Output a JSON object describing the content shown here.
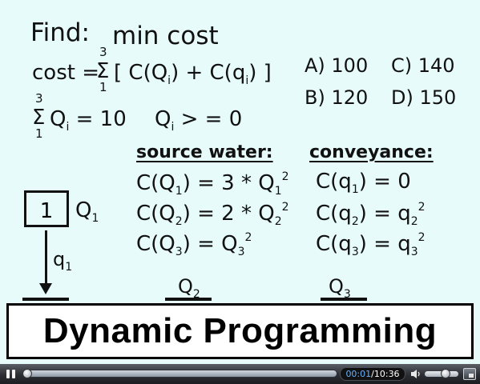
{
  "slide": {
    "find_label": "Find:",
    "find_goal": "min cost",
    "cost_lhs": "cost =",
    "cost_sigma": "Σ",
    "cost_upper": "3",
    "cost_lower": "1",
    "cost_open": "[ C(Q",
    "cost_open_sub": "i",
    "cost_mid": ") + C(q",
    "cost_mid_sub": "i",
    "cost_close": ") ]",
    "sum_sigma": "Σ",
    "sum_upper": "3",
    "sum_lower": "1",
    "sum_q": "Q",
    "sum_q_sub": "i",
    "sum_rhs": "= 10",
    "cons_q": "Q",
    "cons_q_sub": "i",
    "cons_rhs": "> = 0",
    "answers": {
      "a": "A) 100",
      "c": "C) 140",
      "b": "B) 120",
      "d": "D) 150"
    },
    "source_header": "source water:",
    "conveyance_header": "conveyance:",
    "source_rows": [
      {
        "pre": "C(Q",
        "sub": "1",
        "mid": ") = 3 * Q",
        "sub2": "1",
        "sup": "2"
      },
      {
        "pre": "C(Q",
        "sub": "2",
        "mid": ") = 2 * Q",
        "sub2": "2",
        "sup": "2"
      },
      {
        "pre": "C(Q",
        "sub": "3",
        "mid": ") = Q",
        "sub2": "3",
        "sup": "2"
      }
    ],
    "conveyance_rows": [
      {
        "pre": "C(q",
        "sub": "1",
        "mid": ") = 0",
        "sub2": "",
        "sup": ""
      },
      {
        "pre": "C(q",
        "sub": "2",
        "mid": ") = q",
        "sub2": "2",
        "sup": "2"
      },
      {
        "pre": "C(q",
        "sub": "3",
        "mid": ") = q",
        "sub2": "3",
        "sup": "2"
      }
    ],
    "node1_label": "1",
    "node1_q": "Q",
    "node1_q_sub": "1",
    "arrow_q": "q",
    "arrow_q_sub": "1",
    "q2": "Q",
    "q2_sub": "2",
    "q3": "Q",
    "q3_sub": "3",
    "banner": "Dynamic Programming"
  },
  "player": {
    "time_current": "00:01",
    "time_separator": "/",
    "time_total": "10:36",
    "progress_fraction": 0.002,
    "volume_fraction": 0.6
  }
}
